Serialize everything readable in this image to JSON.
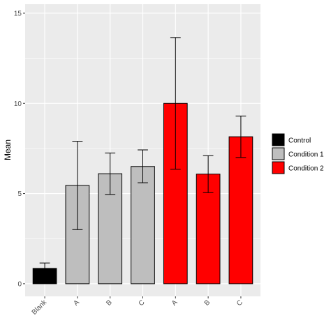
{
  "chart_data": {
    "type": "bar",
    "title": "",
    "xlabel": "",
    "ylabel": "Mean",
    "ylim": [
      -0.7,
      15.5
    ],
    "yticks": [
      0,
      5,
      10,
      15
    ],
    "grid": true,
    "legend_position": "right",
    "categories": [
      "Blank",
      "A",
      "B",
      "C",
      "A",
      "B",
      "C"
    ],
    "values": [
      0.85,
      5.45,
      6.1,
      6.5,
      10.0,
      6.08,
      8.15
    ],
    "error": [
      [
        0.55,
        1.15
      ],
      [
        3.0,
        7.9
      ],
      [
        4.95,
        7.25
      ],
      [
        5.6,
        7.42
      ],
      [
        6.35,
        13.65
      ],
      [
        5.05,
        7.1
      ],
      [
        7.0,
        9.3
      ]
    ],
    "groups": [
      "Control",
      "Condition 1",
      "Condition 1",
      "Condition 1",
      "Condition 2",
      "Condition 2",
      "Condition 2"
    ],
    "legend": [
      {
        "label": "Control",
        "color": "#000000"
      },
      {
        "label": "Condition 1",
        "color": "#bebebe"
      },
      {
        "label": "Condition 2",
        "color": "#ff0000"
      }
    ]
  }
}
